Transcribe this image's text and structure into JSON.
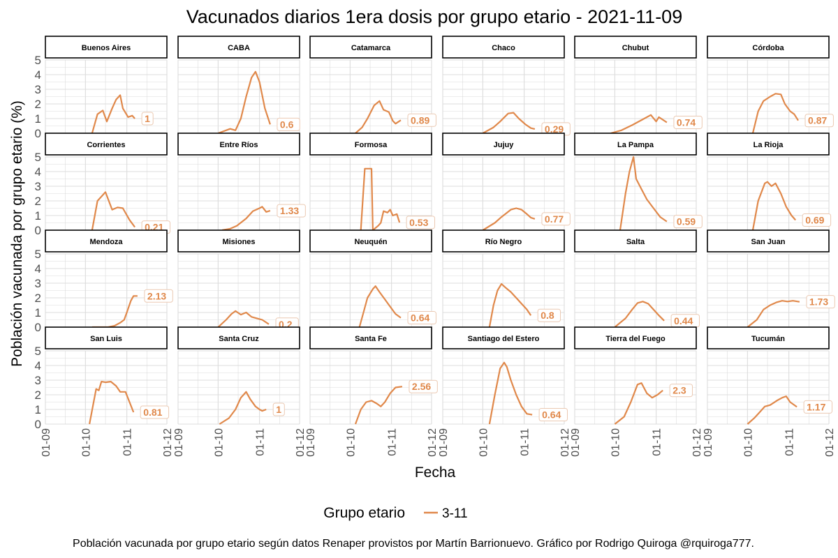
{
  "title": "Vacunados diarios 1era dosis por grupo etario - 2021-11-09",
  "caption": "Población vacunada por grupo etario según datos Renaper provistos por Martín Barrionuevo. Gráfico por Rodrigo Quiroga @rquiroga777.",
  "colors": {
    "series": "#E0884A",
    "strip_border": "#000000",
    "grid": "#DCDCDC"
  },
  "chart_data": {
    "type": "line",
    "xlabel": "Fecha",
    "ylabel": "Población vacunada por grupo etario (%)",
    "x_ticks": [
      "01-09",
      "01-10",
      "01-11",
      "01-12"
    ],
    "y_ticks": [
      "0",
      "1",
      "2",
      "3",
      "4",
      "5"
    ],
    "xlim": [
      "2021-09-01",
      "2021-12-01"
    ],
    "ylim": [
      0,
      5
    ],
    "grid": true,
    "legend": {
      "title": "Grupo etario",
      "position": "bottom",
      "entries": [
        "3-11"
      ]
    },
    "panels": [
      {
        "name": "Buenos Aires",
        "end_label": "1",
        "points": [
          [
            "2021-10-06",
            0
          ],
          [
            "2021-10-10",
            1.3
          ],
          [
            "2021-10-14",
            1.55
          ],
          [
            "2021-10-17",
            0.8
          ],
          [
            "2021-10-21",
            1.7
          ],
          [
            "2021-10-24",
            2.3
          ],
          [
            "2021-10-27",
            2.6
          ],
          [
            "2021-10-29",
            1.7
          ],
          [
            "2021-11-02",
            1.1
          ],
          [
            "2021-11-05",
            1.2
          ],
          [
            "2021-11-07",
            1
          ]
        ]
      },
      {
        "name": "CABA",
        "end_label": "0.6",
        "points": [
          [
            "2021-10-01",
            0
          ],
          [
            "2021-10-10",
            0.3
          ],
          [
            "2021-10-14",
            0.2
          ],
          [
            "2021-10-18",
            1
          ],
          [
            "2021-10-22",
            2.5
          ],
          [
            "2021-10-26",
            3.8
          ],
          [
            "2021-10-29",
            4.2
          ],
          [
            "2021-11-01",
            3.5
          ],
          [
            "2021-11-05",
            1.7
          ],
          [
            "2021-11-09",
            0.6
          ]
        ]
      },
      {
        "name": "Catamarca",
        "end_label": "0.89",
        "points": [
          [
            "2021-10-05",
            0
          ],
          [
            "2021-10-10",
            0.4
          ],
          [
            "2021-10-14",
            1
          ],
          [
            "2021-10-19",
            1.9
          ],
          [
            "2021-10-23",
            2.2
          ],
          [
            "2021-10-26",
            1.6
          ],
          [
            "2021-10-30",
            1.45
          ],
          [
            "2021-11-02",
            0.85
          ],
          [
            "2021-11-04",
            0.65
          ],
          [
            "2021-11-08",
            0.89
          ]
        ]
      },
      {
        "name": "Chaco",
        "end_label": "0.29",
        "points": [
          [
            "2021-10-01",
            0
          ],
          [
            "2021-10-09",
            0.4
          ],
          [
            "2021-10-14",
            0.8
          ],
          [
            "2021-10-20",
            1.35
          ],
          [
            "2021-10-24",
            1.4
          ],
          [
            "2021-10-28",
            1
          ],
          [
            "2021-11-02",
            0.6
          ],
          [
            "2021-11-06",
            0.35
          ],
          [
            "2021-11-09",
            0.29
          ]
        ]
      },
      {
        "name": "Chubut",
        "end_label": "0.74",
        "points": [
          [
            "2021-09-28",
            0
          ],
          [
            "2021-10-06",
            0.2
          ],
          [
            "2021-10-14",
            0.55
          ],
          [
            "2021-10-22",
            0.95
          ],
          [
            "2021-10-28",
            1.25
          ],
          [
            "2021-11-01",
            0.8
          ],
          [
            "2021-11-03",
            1.1
          ],
          [
            "2021-11-09",
            0.74
          ]
        ]
      },
      {
        "name": "Córdoba",
        "end_label": "0.87",
        "points": [
          [
            "2021-10-05",
            0
          ],
          [
            "2021-10-09",
            1.5
          ],
          [
            "2021-10-13",
            2.2
          ],
          [
            "2021-10-18",
            2.5
          ],
          [
            "2021-10-22",
            2.7
          ],
          [
            "2021-10-26",
            2.65
          ],
          [
            "2021-10-29",
            2
          ],
          [
            "2021-11-02",
            1.5
          ],
          [
            "2021-11-05",
            1.3
          ],
          [
            "2021-11-08",
            0.87
          ]
        ]
      },
      {
        "name": "Corrientes",
        "end_label": "0.21",
        "points": [
          [
            "2021-10-06",
            0
          ],
          [
            "2021-10-10",
            2
          ],
          [
            "2021-10-14",
            2.4
          ],
          [
            "2021-10-16",
            2.6
          ],
          [
            "2021-10-21",
            1.4
          ],
          [
            "2021-10-25",
            1.55
          ],
          [
            "2021-10-29",
            1.5
          ],
          [
            "2021-11-03",
            0.7
          ],
          [
            "2021-11-07",
            0.21
          ]
        ]
      },
      {
        "name": "Entre Ríos",
        "end_label": "1.33",
        "points": [
          [
            "2021-10-04",
            0
          ],
          [
            "2021-10-10",
            0.1
          ],
          [
            "2021-10-15",
            0.3
          ],
          [
            "2021-10-22",
            0.8
          ],
          [
            "2021-10-27",
            1.3
          ],
          [
            "2021-11-01",
            1.5
          ],
          [
            "2021-11-03",
            1.6
          ],
          [
            "2021-11-06",
            1.25
          ],
          [
            "2021-11-09",
            1.33
          ]
        ]
      },
      {
        "name": "Formosa",
        "end_label": "0.53",
        "points": [
          [
            "2021-10-09",
            0
          ],
          [
            "2021-10-12",
            4.2
          ],
          [
            "2021-10-17",
            4.2
          ],
          [
            "2021-10-18",
            0
          ],
          [
            "2021-10-22",
            0.3
          ],
          [
            "2021-10-24",
            0.5
          ],
          [
            "2021-10-26",
            1.3
          ],
          [
            "2021-10-29",
            1.2
          ],
          [
            "2021-10-31",
            1.4
          ],
          [
            "2021-11-02",
            1
          ],
          [
            "2021-11-05",
            1.1
          ],
          [
            "2021-11-07",
            0.53
          ]
        ]
      },
      {
        "name": "Jujuy",
        "end_label": "0.77",
        "points": [
          [
            "2021-10-01",
            0
          ],
          [
            "2021-10-10",
            0.5
          ],
          [
            "2021-10-15",
            0.9
          ],
          [
            "2021-10-22",
            1.4
          ],
          [
            "2021-10-26",
            1.5
          ],
          [
            "2021-10-30",
            1.4
          ],
          [
            "2021-11-03",
            1.1
          ],
          [
            "2021-11-06",
            0.85
          ],
          [
            "2021-11-09",
            0.77
          ]
        ]
      },
      {
        "name": "La Pampa",
        "end_label": "0.59",
        "points": [
          [
            "2021-10-05",
            0
          ],
          [
            "2021-10-09",
            2.5
          ],
          [
            "2021-10-12",
            4
          ],
          [
            "2021-10-15",
            5
          ],
          [
            "2021-10-17",
            3.5
          ],
          [
            "2021-10-21",
            2.8
          ],
          [
            "2021-10-25",
            2.1
          ],
          [
            "2021-10-30",
            1.5
          ],
          [
            "2021-11-04",
            0.9
          ],
          [
            "2021-11-09",
            0.59
          ]
        ]
      },
      {
        "name": "La Rioja",
        "end_label": "0.69",
        "points": [
          [
            "2021-10-05",
            0
          ],
          [
            "2021-10-09",
            2
          ],
          [
            "2021-10-14",
            3.2
          ],
          [
            "2021-10-16",
            3.3
          ],
          [
            "2021-10-19",
            3.0
          ],
          [
            "2021-10-22",
            3.2
          ],
          [
            "2021-10-26",
            2.5
          ],
          [
            "2021-10-30",
            1.6
          ],
          [
            "2021-11-03",
            1
          ],
          [
            "2021-11-06",
            0.69
          ]
        ]
      },
      {
        "name": "Mendoza",
        "end_label": "2.13",
        "points": [
          [
            "2021-10-06",
            0
          ],
          [
            "2021-10-18",
            0
          ],
          [
            "2021-10-23",
            0.1
          ],
          [
            "2021-10-27",
            0.3
          ],
          [
            "2021-10-30",
            0.5
          ],
          [
            "2021-11-01",
            1
          ],
          [
            "2021-11-04",
            1.8
          ],
          [
            "2021-11-06",
            2.13
          ],
          [
            "2021-11-09",
            2.13
          ]
        ]
      },
      {
        "name": "Misiones",
        "end_label": "0.2",
        "points": [
          [
            "2021-10-01",
            0
          ],
          [
            "2021-10-07",
            0.5
          ],
          [
            "2021-10-11",
            0.9
          ],
          [
            "2021-10-14",
            1.1
          ],
          [
            "2021-10-18",
            0.85
          ],
          [
            "2021-10-22",
            1.0
          ],
          [
            "2021-10-26",
            0.7
          ],
          [
            "2021-10-30",
            0.6
          ],
          [
            "2021-11-03",
            0.5
          ],
          [
            "2021-11-08",
            0.2
          ]
        ]
      },
      {
        "name": "Neuquén",
        "end_label": "0.64",
        "points": [
          [
            "2021-10-08",
            0
          ],
          [
            "2021-10-11",
            1
          ],
          [
            "2021-10-14",
            2
          ],
          [
            "2021-10-18",
            2.6
          ],
          [
            "2021-10-20",
            2.8
          ],
          [
            "2021-10-23",
            2.4
          ],
          [
            "2021-10-27",
            1.9
          ],
          [
            "2021-10-31",
            1.4
          ],
          [
            "2021-11-04",
            0.9
          ],
          [
            "2021-11-08",
            0.64
          ]
        ]
      },
      {
        "name": "Río Negro",
        "end_label": "0.8",
        "points": [
          [
            "2021-10-06",
            0
          ],
          [
            "2021-10-09",
            1.5
          ],
          [
            "2021-10-12",
            2.5
          ],
          [
            "2021-10-15",
            2.95
          ],
          [
            "2021-10-18",
            2.7
          ],
          [
            "2021-10-22",
            2.4
          ],
          [
            "2021-10-26",
            2
          ],
          [
            "2021-10-30",
            1.6
          ],
          [
            "2021-11-03",
            1.2
          ],
          [
            "2021-11-06",
            0.8
          ]
        ]
      },
      {
        "name": "Salta",
        "end_label": "0.44",
        "points": [
          [
            "2021-10-01",
            0
          ],
          [
            "2021-10-09",
            0.6
          ],
          [
            "2021-10-14",
            1.2
          ],
          [
            "2021-10-18",
            1.65
          ],
          [
            "2021-10-22",
            1.75
          ],
          [
            "2021-10-26",
            1.6
          ],
          [
            "2021-10-30",
            1.2
          ],
          [
            "2021-11-03",
            0.8
          ],
          [
            "2021-11-07",
            0.44
          ]
        ]
      },
      {
        "name": "San Juan",
        "end_label": "1.73",
        "points": [
          [
            "2021-10-01",
            0
          ],
          [
            "2021-10-08",
            0.5
          ],
          [
            "2021-10-13",
            1.2
          ],
          [
            "2021-10-18",
            1.5
          ],
          [
            "2021-10-23",
            1.7
          ],
          [
            "2021-10-27",
            1.8
          ],
          [
            "2021-10-31",
            1.75
          ],
          [
            "2021-11-04",
            1.8
          ],
          [
            "2021-11-09",
            1.73
          ]
        ]
      },
      {
        "name": "San Luis",
        "end_label": "0.81",
        "points": [
          [
            "2021-10-04",
            0
          ],
          [
            "2021-10-09",
            2.4
          ],
          [
            "2021-10-11",
            2.3
          ],
          [
            "2021-10-13",
            2.9
          ],
          [
            "2021-10-16",
            2.85
          ],
          [
            "2021-10-20",
            2.9
          ],
          [
            "2021-10-24",
            2.6
          ],
          [
            "2021-10-27",
            2.2
          ],
          [
            "2021-10-31",
            2.2
          ],
          [
            "2021-11-03",
            1.5
          ],
          [
            "2021-11-06",
            0.81
          ]
        ]
      },
      {
        "name": "Santa Cruz",
        "end_label": "1",
        "points": [
          [
            "2021-10-02",
            0
          ],
          [
            "2021-10-09",
            0.4
          ],
          [
            "2021-10-14",
            1
          ],
          [
            "2021-10-18",
            1.8
          ],
          [
            "2021-10-22",
            2.2
          ],
          [
            "2021-10-25",
            1.7
          ],
          [
            "2021-10-29",
            1.2
          ],
          [
            "2021-11-01",
            1.0
          ],
          [
            "2021-11-03",
            0.9
          ],
          [
            "2021-11-06",
            1
          ]
        ]
      },
      {
        "name": "Santa Fe",
        "end_label": "2.56",
        "points": [
          [
            "2021-10-05",
            0
          ],
          [
            "2021-10-09",
            1
          ],
          [
            "2021-10-13",
            1.5
          ],
          [
            "2021-10-17",
            1.6
          ],
          [
            "2021-10-21",
            1.4
          ],
          [
            "2021-10-24",
            1.2
          ],
          [
            "2021-10-27",
            1.5
          ],
          [
            "2021-10-31",
            2.1
          ],
          [
            "2021-11-04",
            2.5
          ],
          [
            "2021-11-09",
            2.56
          ]
        ]
      },
      {
        "name": "Santiago del Estero",
        "end_label": "0.64",
        "points": [
          [
            "2021-10-06",
            0
          ],
          [
            "2021-10-10",
            2
          ],
          [
            "2021-10-14",
            3.8
          ],
          [
            "2021-10-17",
            4.2
          ],
          [
            "2021-10-19",
            3.9
          ],
          [
            "2021-10-22",
            3
          ],
          [
            "2021-10-26",
            2
          ],
          [
            "2021-10-30",
            1.2
          ],
          [
            "2021-11-03",
            0.7
          ],
          [
            "2021-11-07",
            0.64
          ]
        ]
      },
      {
        "name": "Tierra del Fuego",
        "end_label": "2.3",
        "points": [
          [
            "2021-10-01",
            0
          ],
          [
            "2021-10-08",
            0.5
          ],
          [
            "2021-10-13",
            1.5
          ],
          [
            "2021-10-18",
            2.7
          ],
          [
            "2021-10-21",
            2.8
          ],
          [
            "2021-10-25",
            2.1
          ],
          [
            "2021-10-29",
            1.8
          ],
          [
            "2021-11-02",
            2.0
          ],
          [
            "2021-11-06",
            2.3
          ]
        ]
      },
      {
        "name": "Tucumán",
        "end_label": "1.17",
        "points": [
          [
            "2021-10-01",
            0
          ],
          [
            "2021-10-06",
            0.4
          ],
          [
            "2021-10-10",
            0.8
          ],
          [
            "2021-10-14",
            1.2
          ],
          [
            "2021-10-18",
            1.3
          ],
          [
            "2021-10-23",
            1.6
          ],
          [
            "2021-10-27",
            1.8
          ],
          [
            "2021-10-30",
            1.9
          ],
          [
            "2021-11-02",
            1.5
          ],
          [
            "2021-11-07",
            1.17
          ]
        ]
      }
    ]
  }
}
